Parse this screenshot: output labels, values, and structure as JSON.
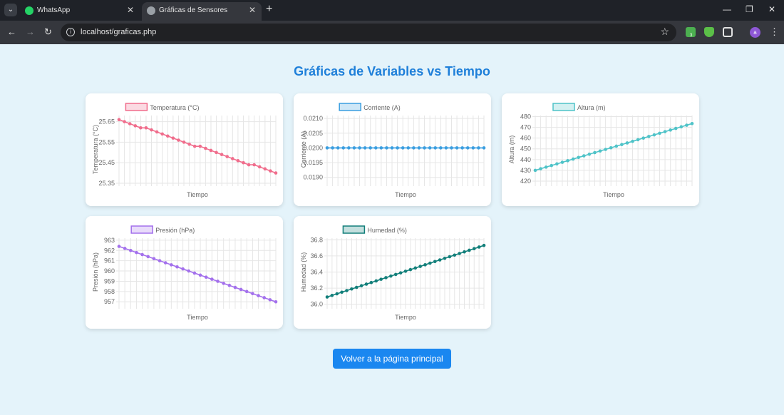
{
  "browser": {
    "tab_menu_icon": "chevron-down-icon",
    "tabs": [
      {
        "title": "WhatsApp",
        "icon": "whatsapp-icon",
        "active": false
      },
      {
        "title": "Gráficas de Sensores",
        "icon": "globe-icon",
        "active": true
      }
    ],
    "url": "localhost/graficas.php",
    "profile_initial": "a",
    "extension_badge": "3",
    "colors": {
      "tab_bar": "#1f2228",
      "toolbar": "#35373d",
      "omnibox": "#202124"
    }
  },
  "page": {
    "title": "Gráficas de Variables vs Tiempo",
    "back_button": "Volver a la página principal",
    "colors": {
      "background": "#e4f3fa",
      "title": "#1e7fd9",
      "button": "#1a87f0"
    }
  },
  "chart_data": [
    {
      "type": "line",
      "legend": "Temperatura (°C)",
      "xlabel": "Tiempo",
      "ylabel": "Temperatura (°C)",
      "ylim": [
        25.35,
        25.68
      ],
      "yticks": [
        25.35,
        25.45,
        25.55,
        25.65
      ],
      "ytick_labels": [
        "25.35",
        "25.45",
        "25.55",
        "25.65"
      ],
      "color": "#f06d8c",
      "values": [
        25.66,
        25.65,
        25.64,
        25.63,
        25.62,
        25.62,
        25.61,
        25.6,
        25.59,
        25.58,
        25.57,
        25.56,
        25.55,
        25.54,
        25.53,
        25.53,
        25.52,
        25.51,
        25.5,
        25.49,
        25.48,
        25.47,
        25.46,
        25.45,
        25.44,
        25.44,
        25.43,
        25.42,
        25.41,
        25.4
      ]
    },
    {
      "type": "line",
      "legend": "Corriente (A)",
      "xlabel": "Tiempo",
      "ylabel": "Corriente (A)",
      "ylim": [
        0.0188,
        0.0211
      ],
      "yticks": [
        0.019,
        0.0195,
        0.02,
        0.0205,
        0.021
      ],
      "ytick_labels": [
        "0.0190",
        "0.0195",
        "0.0200",
        "0.0205",
        "0.0210"
      ],
      "color": "#3a9ee0",
      "values": [
        0.02,
        0.02,
        0.02,
        0.02,
        0.02,
        0.02,
        0.02,
        0.02,
        0.02,
        0.02,
        0.02,
        0.02,
        0.02,
        0.02,
        0.02,
        0.02,
        0.02,
        0.02,
        0.02,
        0.02,
        0.02,
        0.02,
        0.02,
        0.02,
        0.02,
        0.02,
        0.02,
        0.02,
        0.02,
        0.02
      ]
    },
    {
      "type": "line",
      "legend": "Altura (m)",
      "xlabel": "Tiempo",
      "ylabel": "Altura (m)",
      "ylim": [
        418,
        481
      ],
      "yticks": [
        420,
        430,
        440,
        450,
        460,
        470,
        480
      ],
      "ytick_labels": [
        "420",
        "430",
        "440",
        "450",
        "460",
        "470",
        "480"
      ],
      "color": "#4fc3c8",
      "values": [
        430,
        431.5,
        433,
        434.5,
        436,
        437.5,
        439,
        440.5,
        442,
        443.5,
        445,
        446.5,
        448,
        449.5,
        451,
        452.5,
        454,
        455.5,
        457,
        458.5,
        460,
        461.5,
        463,
        464.5,
        466,
        467.5,
        469,
        470.5,
        472,
        473.5
      ]
    },
    {
      "type": "line",
      "legend": "Presión (hPa)",
      "xlabel": "Tiempo",
      "ylabel": "Presión (hPa)",
      "ylim": [
        956.6,
        963.2
      ],
      "yticks": [
        957,
        958,
        959,
        960,
        961,
        962,
        963
      ],
      "ytick_labels": [
        "957",
        "958",
        "959",
        "960",
        "961",
        "962",
        "963"
      ],
      "color": "#a370ec",
      "values": [
        962.4,
        962.2,
        962.0,
        961.8,
        961.6,
        961.4,
        961.2,
        961.0,
        960.8,
        960.6,
        960.4,
        960.2,
        960.0,
        959.8,
        959.6,
        959.4,
        959.2,
        959.0,
        958.8,
        958.6,
        958.4,
        958.2,
        958.0,
        957.8,
        957.6,
        957.4,
        957.2,
        957.0
      ]
    },
    {
      "type": "line",
      "legend": "Humedad (%)",
      "xlabel": "Tiempo",
      "ylabel": "Humedad (%)",
      "ylim": [
        35.98,
        36.82
      ],
      "yticks": [
        36.0,
        36.2,
        36.4,
        36.6,
        36.8
      ],
      "ytick_labels": [
        "36.0",
        "36.2",
        "36.4",
        "36.6",
        "36.8"
      ],
      "color": "#127f7a",
      "values": [
        36.09,
        36.11,
        36.13,
        36.15,
        36.17,
        36.19,
        36.21,
        36.23,
        36.25,
        36.27,
        36.29,
        36.31,
        36.33,
        36.35,
        36.37,
        36.39,
        36.41,
        36.43,
        36.45,
        36.47,
        36.49,
        36.51,
        36.53,
        36.55,
        36.57,
        36.59,
        36.61,
        36.63,
        36.65,
        36.67,
        36.69,
        36.71,
        36.73
      ]
    }
  ]
}
